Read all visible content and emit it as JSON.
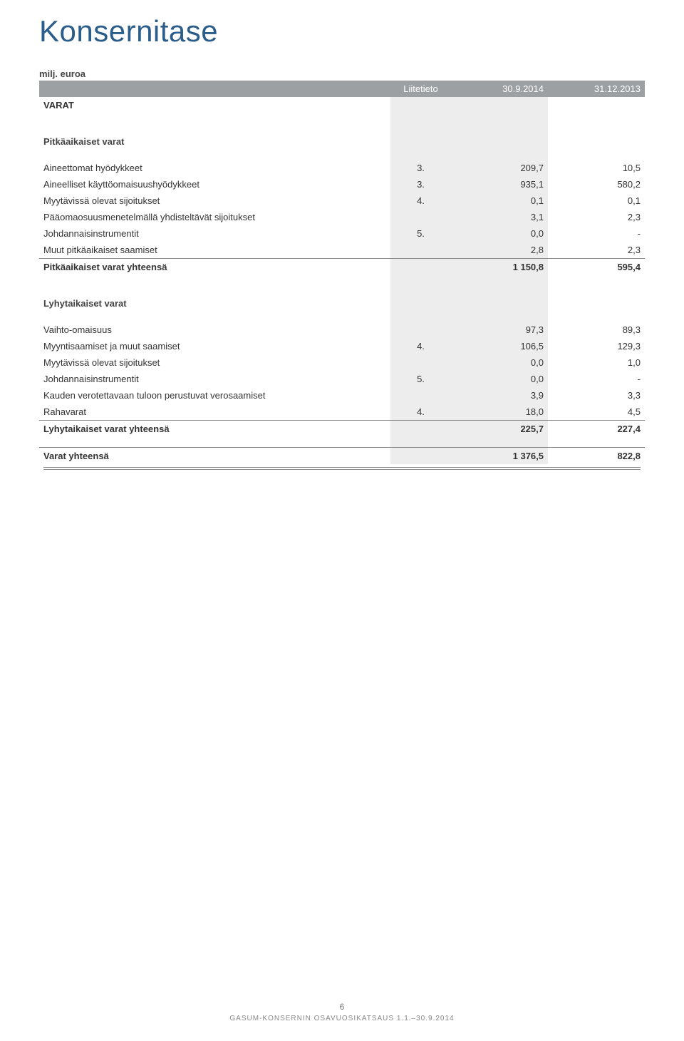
{
  "title": "Konsernitase",
  "caption": "milj. euroa",
  "header": {
    "note": "Liitetieto",
    "col1": "30.9.2014",
    "col2": "31.12.2013"
  },
  "section1": "VARAT",
  "sub1": "Pitkäaikaiset varat",
  "rows1": [
    {
      "label": "Aineettomat hyödykkeet",
      "note": "3.",
      "v1": "209,7",
      "v2": "10,5"
    },
    {
      "label": "Aineelliset käyttöomaisuushyödykkeet",
      "note": "3.",
      "v1": "935,1",
      "v2": "580,2"
    },
    {
      "label": "Myytävissä olevat sijoitukset",
      "note": "4.",
      "v1": "0,1",
      "v2": "0,1"
    },
    {
      "label": "Pääomaosuusmenetelmällä yhdisteltävät sijoitukset",
      "note": "",
      "v1": "3,1",
      "v2": "2,3"
    },
    {
      "label": "Johdannaisinstrumentit",
      "note": "5.",
      "v1": "0,0",
      "v2": "-"
    },
    {
      "label": "Muut pitkäaikaiset saamiset",
      "note": "",
      "v1": "2,8",
      "v2": "2,3"
    }
  ],
  "total1": {
    "label": "Pitkäaikaiset varat yhteensä",
    "v1": "1 150,8",
    "v2": "595,4"
  },
  "sub2": "Lyhytaikaiset varat",
  "rows2": [
    {
      "label": "Vaihto-omaisuus",
      "note": "",
      "v1": "97,3",
      "v2": "89,3"
    },
    {
      "label": "Myyntisaamiset ja muut saamiset",
      "note": "4.",
      "v1": "106,5",
      "v2": "129,3"
    },
    {
      "label": "Myytävissä olevat sijoitukset",
      "note": "",
      "v1": "0,0",
      "v2": "1,0"
    },
    {
      "label": "Johdannaisinstrumentit",
      "note": "5.",
      "v1": "0,0",
      "v2": "-"
    },
    {
      "label": "Kauden verotettavaan tuloon perustuvat verosaamiset",
      "note": "",
      "v1": "3,9",
      "v2": "3,3"
    },
    {
      "label": "Rahavarat",
      "note": "4.",
      "v1": "18,0",
      "v2": "4,5"
    }
  ],
  "total2": {
    "label": "Lyhytaikaiset varat yhteensä",
    "v1": "225,7",
    "v2": "227,4"
  },
  "grand": {
    "label": "Varat yhteensä",
    "v1": "1 376,5",
    "v2": "822,8"
  },
  "footer": {
    "page": "6",
    "text": "GASUM-KONSERNIN OSAVUOSIKATSAUS 1.1.–30.9.2014"
  },
  "colors": {
    "header_bg": "#9ca0a3",
    "shade_bg": "#ededed",
    "title_color": "#2b5d8b"
  }
}
